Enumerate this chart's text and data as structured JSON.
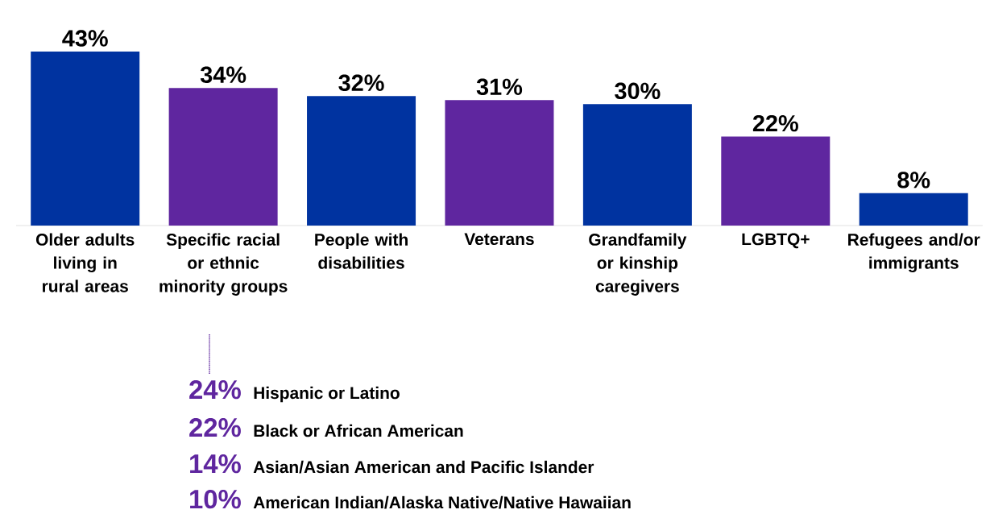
{
  "chart_data": {
    "type": "bar",
    "categories": [
      "Older adults living in rural areas",
      "Specific racial or ethnic minority groups",
      "People with disabilities",
      "Veterans",
      "Grandfamily or kinship caregivers",
      "LGBTQ+",
      "Refugees and/or immigrants"
    ],
    "values": [
      43,
      34,
      32,
      31,
      30,
      22,
      8
    ],
    "value_labels": [
      "43%",
      "34%",
      "32%",
      "31%",
      "30%",
      "22%",
      "8%"
    ],
    "colors": [
      "#0033a0",
      "#5f269f",
      "#0033a0",
      "#5f269f",
      "#0033a0",
      "#5f269f",
      "#0033a0"
    ],
    "annotations": [
      "24%",
      "Hispanic or Latino",
      "22%",
      "Black or African American",
      "14%",
      "Asian/Asian American and Pacific Islander",
      "10%",
      "American Indian/Alaska Native/Native Hawaiian"
    ]
  }
}
